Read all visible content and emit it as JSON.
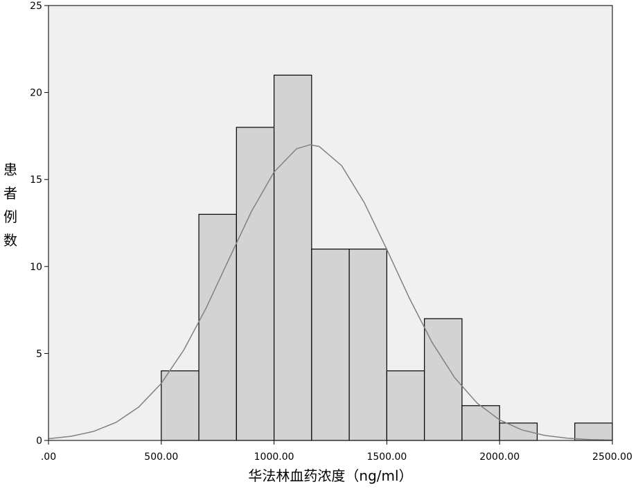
{
  "chart_data": {
    "type": "histogram",
    "x_label": "华法林血药浓度（ng/ml）",
    "y_label": "患者例数",
    "bins": [
      500,
      666.67,
      833.33,
      1000,
      1166.67,
      1333.33,
      1500,
      1666.67,
      1833.33,
      2000,
      2166.67,
      2333.33,
      2500
    ],
    "counts": [
      4,
      13,
      18,
      21,
      11,
      11,
      4,
      7,
      2,
      1,
      0,
      1
    ],
    "color": "#d3d3d3",
    "curve": {
      "color": "#808080",
      "x": [
        0,
        100,
        200,
        300,
        400,
        500,
        600,
        700,
        800,
        900,
        1000,
        1100,
        1160,
        1200,
        1300,
        1400,
        1500,
        1600,
        1700,
        1800,
        1900,
        2000,
        2100,
        2200,
        2300,
        2400,
        2500
      ],
      "y": [
        0.1,
        0.24,
        0.52,
        1.04,
        1.92,
        3.28,
        5.2,
        7.64,
        10.42,
        13.17,
        15.43,
        16.77,
        17,
        16.9,
        15.79,
        13.67,
        10.98,
        8.18,
        5.65,
        3.62,
        2.15,
        1.18,
        0.6,
        0.29,
        0.13,
        0.05,
        0.02
      ]
    },
    "xlim": [
      0,
      2500
    ],
    "xticks": [
      {
        "value": 0,
        "label": ".00"
      },
      {
        "value": 500,
        "label": "500.00"
      },
      {
        "value": 1000,
        "label": "1000.00"
      },
      {
        "value": 1500,
        "label": "1500.00"
      },
      {
        "value": 2000,
        "label": "2000.00"
      },
      {
        "value": 2500,
        "label": "2500.00"
      }
    ],
    "ylim": [
      0,
      25
    ],
    "yticks": [
      0,
      5,
      10,
      15,
      20,
      25
    ]
  }
}
